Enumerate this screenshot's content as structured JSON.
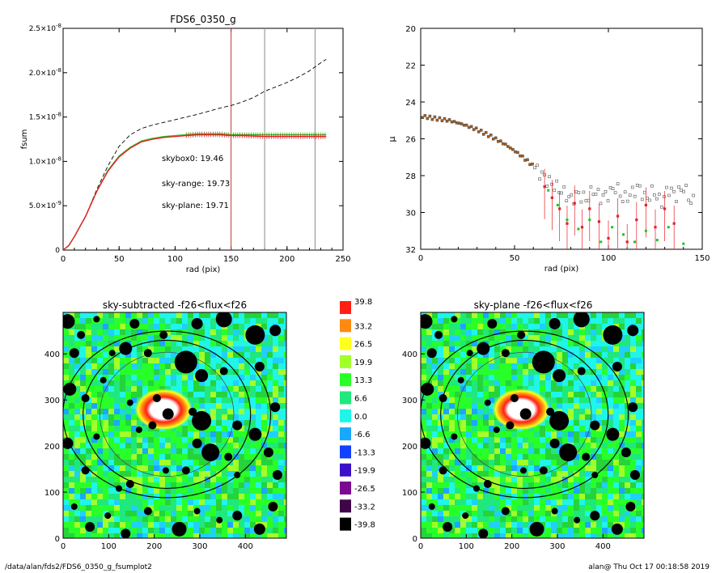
{
  "footer": {
    "path": "/data/alan/fds2/FDS6_0350_g_fsumplot2",
    "stamp": "alan@  Thu Oct 17 00:18:58 2019"
  },
  "chart_data": [
    {
      "type": "line",
      "title": "FDS6_0350_g",
      "xlabel": "rad (pix)",
      "ylabel": "fsum",
      "xlim": [
        0,
        250
      ],
      "ylim": [
        0,
        2.5e-08
      ],
      "xticks": [
        "0",
        "50",
        "100",
        "150",
        "200",
        "250"
      ],
      "yticks": [
        {
          "value": 0,
          "mant": "0",
          "exp": ""
        },
        {
          "value": 5e-09,
          "mant": "5.0×10",
          "exp": "-9"
        },
        {
          "value": 1e-08,
          "mant": "1.0×10",
          "exp": "-8"
        },
        {
          "value": 1.5e-08,
          "mant": "1.5×10",
          "exp": "-8"
        },
        {
          "value": 2e-08,
          "mant": "2.0×10",
          "exp": "-8"
        },
        {
          "value": 2.5e-08,
          "mant": "2.5×10",
          "exp": "-8"
        }
      ],
      "vlines": [
        {
          "x": 150,
          "color": "#c0392b"
        },
        {
          "x": 180,
          "color": "#8a8a8a"
        },
        {
          "x": 225,
          "color": "#8a8a8a"
        }
      ],
      "annotations": [
        {
          "text": "skybox0: 19.46",
          "color": "#000000"
        },
        {
          "text": "sky-range: 19.73",
          "color": "#e8202a"
        },
        {
          "text": "sky-plane: 19.71",
          "color": "#22c21e"
        }
      ],
      "series": [
        {
          "style": "dashed",
          "color": "#000000",
          "x": [
            0,
            5,
            10,
            20,
            30,
            40,
            50,
            60,
            70,
            80,
            90,
            100,
            120,
            140,
            150,
            160,
            170,
            180,
            190,
            200,
            210,
            220,
            230,
            235
          ],
          "y": [
            0,
            5e-10,
            1.5e-09,
            3.8e-09,
            6.8e-09,
            9.5e-09,
            1.17e-08,
            1.3e-08,
            1.37e-08,
            1.41e-08,
            1.44e-08,
            1.47e-08,
            1.53e-08,
            1.6e-08,
            1.63e-08,
            1.67e-08,
            1.72e-08,
            1.79e-08,
            1.84e-08,
            1.89e-08,
            1.95e-08,
            2.02e-08,
            2.11e-08,
            2.15e-08
          ]
        },
        {
          "style": "solid",
          "color": "#22c21e",
          "x": [
            0,
            5,
            10,
            20,
            30,
            40,
            50,
            60,
            70,
            80,
            90,
            100,
            110,
            120,
            130,
            140,
            150,
            160,
            180,
            200,
            220,
            235
          ],
          "y": [
            0,
            5e-10,
            1.5e-09,
            3.8e-09,
            6.6e-09,
            9e-09,
            1.06e-08,
            1.16e-08,
            1.23e-08,
            1.26e-08,
            1.28e-08,
            1.29e-08,
            1.3e-08,
            1.31e-08,
            1.31e-08,
            1.31e-08,
            1.3e-08,
            1.3e-08,
            1.3e-08,
            1.3e-08,
            1.3e-08,
            1.3e-08
          ]
        },
        {
          "style": "solid",
          "color": "#e8202a",
          "x": [
            0,
            5,
            10,
            20,
            30,
            40,
            50,
            60,
            70,
            80,
            90,
            100,
            110,
            120,
            130,
            140,
            150,
            160,
            180,
            200,
            220,
            235
          ],
          "y": [
            0,
            5e-10,
            1.5e-09,
            3.8e-09,
            6.6e-09,
            8.9e-09,
            1.05e-08,
            1.15e-08,
            1.22e-08,
            1.25e-08,
            1.27e-08,
            1.28e-08,
            1.29e-08,
            1.3e-08,
            1.3e-08,
            1.3e-08,
            1.29e-08,
            1.29e-08,
            1.28e-08,
            1.28e-08,
            1.28e-08,
            1.28e-08
          ]
        }
      ]
    },
    {
      "type": "scatter",
      "title": "",
      "xlabel": "rad (pix)",
      "ylabel": "μ",
      "xlim": [
        0,
        150
      ],
      "ylim": [
        32,
        20
      ],
      "xticks": [
        "0",
        "50",
        "100",
        "150"
      ],
      "yticks": [
        "20",
        "22",
        "24",
        "26",
        "28",
        "30",
        "32"
      ],
      "series": [
        {
          "name": "skybox0",
          "color": "#555555",
          "x": [
            2,
            8,
            15,
            22,
            30,
            38,
            45,
            52,
            58,
            63,
            68,
            72,
            76,
            80,
            84,
            88,
            92,
            96,
            100,
            104,
            108,
            112,
            116,
            120,
            124,
            128,
            132,
            136,
            140,
            144
          ],
          "y": [
            24.8,
            24.9,
            25.0,
            25.2,
            25.5,
            25.9,
            26.3,
            26.8,
            27.3,
            27.8,
            28.3,
            28.6,
            28.9,
            29.3,
            29.0,
            29.3,
            28.8,
            29.2,
            29.0,
            28.6,
            29.3,
            29.0,
            28.6,
            29.3,
            28.8,
            29.5,
            28.7,
            29.1,
            28.6,
            29.4
          ]
        },
        {
          "name": "sky-range",
          "color": "#e8202a",
          "x": [
            66,
            70,
            74,
            78,
            82,
            86,
            90,
            95,
            100,
            105,
            110,
            115,
            120,
            125,
            130,
            135
          ],
          "y": [
            28.6,
            29.2,
            29.8,
            30.6,
            29.5,
            30.8,
            29.8,
            30.5,
            31.4,
            30.2,
            31.6,
            30.4,
            29.6,
            30.8,
            29.8,
            30.6
          ]
        },
        {
          "name": "sky-plane",
          "color": "#22c21e",
          "x": [
            68,
            73,
            78,
            84,
            90,
            96,
            102,
            108,
            114,
            120,
            126,
            132,
            140
          ],
          "y": [
            28.8,
            29.6,
            30.4,
            30.9,
            30.4,
            31.6,
            30.8,
            31.2,
            31.6,
            31.0,
            31.5,
            30.8,
            31.7
          ]
        }
      ]
    },
    {
      "type": "heatmap",
      "title": "sky-subtracted -f26<flux<f26",
      "xlim": [
        0,
        490
      ],
      "ylim": [
        0,
        490
      ],
      "xticks": [
        "0",
        "100",
        "200",
        "300",
        "400"
      ],
      "yticks": [
        "0",
        "100",
        "200",
        "300",
        "400"
      ]
    },
    {
      "type": "heatmap",
      "title": "sky-plane -f26<flux<f26",
      "xlim": [
        0,
        490
      ],
      "ylim": [
        0,
        490
      ],
      "xticks": [
        "0",
        "100",
        "200",
        "300",
        "400"
      ],
      "yticks": [
        "0",
        "100",
        "200",
        "300",
        "400"
      ]
    },
    {
      "type": "colorbar",
      "labels": [
        "39.8",
        "33.2",
        "26.5",
        "19.9",
        "13.3",
        "6.6",
        "0.0",
        "-6.6",
        "-13.3",
        "-19.9",
        "-26.5",
        "-33.2",
        "-39.8"
      ],
      "colors": [
        "#ff2015",
        "#ff8a10",
        "#ffff1e",
        "#a2ff2a",
        "#28ff28",
        "#1fe87c",
        "#1ff5e9",
        "#1aa8ff",
        "#1240ff",
        "#3a10c8",
        "#7a0a90",
        "#3e0648",
        "#000000"
      ]
    }
  ]
}
